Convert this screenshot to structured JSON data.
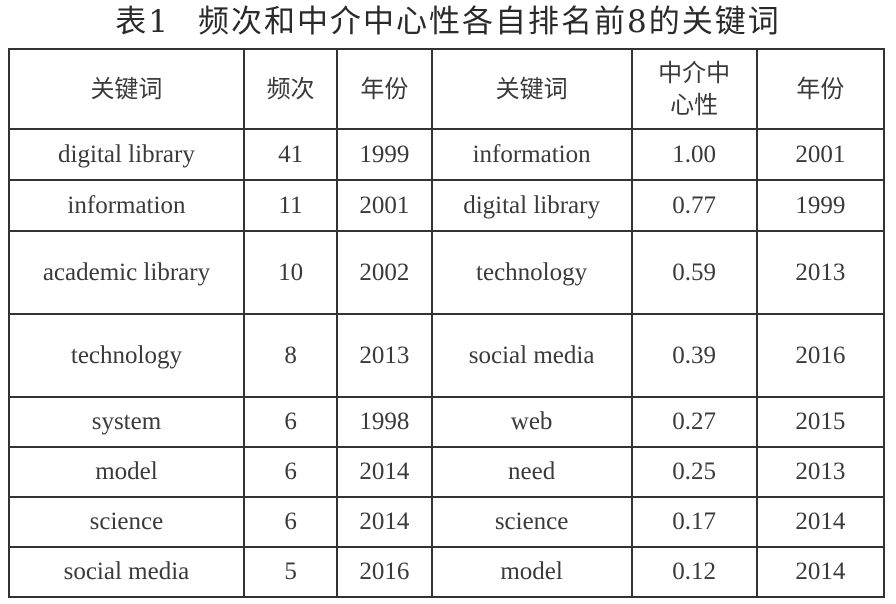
{
  "caption": {
    "number": "表1",
    "title": "频次和中介中心性各自排名前8的关键词"
  },
  "table": {
    "headers": [
      "关键词",
      "频次",
      "年份",
      "关键词",
      "中介中心性",
      "年份"
    ],
    "rows": [
      [
        "digital library",
        "41",
        "1999",
        "information",
        "1.00",
        "2001"
      ],
      [
        "information",
        "11",
        "2001",
        "digital library",
        "0.77",
        "1999"
      ],
      [
        "academic library",
        "10",
        "2002",
        "technology",
        "0.59",
        "2013"
      ],
      [
        "technology",
        "8",
        "2013",
        "social media",
        "0.39",
        "2016"
      ],
      [
        "system",
        "6",
        "1998",
        "web",
        "0.27",
        "2015"
      ],
      [
        "model",
        "6",
        "2014",
        "need",
        "0.25",
        "2013"
      ],
      [
        "science",
        "6",
        "2014",
        "science",
        "0.17",
        "2014"
      ],
      [
        "social media",
        "5",
        "2016",
        "model",
        "0.12",
        "2014"
      ]
    ]
  }
}
